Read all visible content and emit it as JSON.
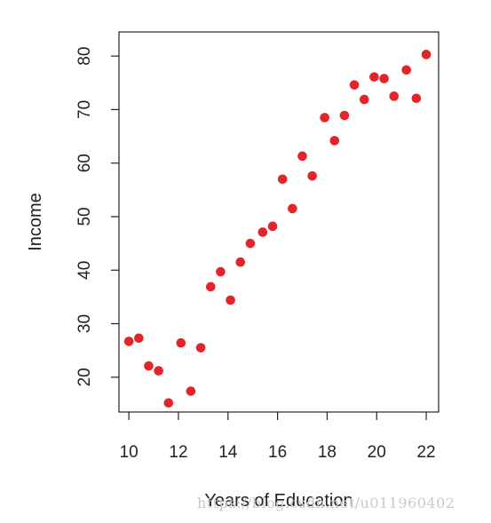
{
  "chart_data": {
    "type": "scatter",
    "xlabel": "Years of Education",
    "ylabel": "Income",
    "xlim": [
      9.6,
      22.5
    ],
    "ylim": [
      13.5,
      84.5
    ],
    "xticks": [
      10,
      12,
      14,
      16,
      18,
      20,
      22
    ],
    "yticks": [
      20,
      30,
      40,
      50,
      60,
      70,
      80
    ],
    "grid": false,
    "point_color": "#e3242b",
    "points": [
      {
        "x": 10.0,
        "y": 26.7
      },
      {
        "x": 10.4,
        "y": 27.3
      },
      {
        "x": 10.8,
        "y": 22.1
      },
      {
        "x": 11.2,
        "y": 21.2
      },
      {
        "x": 11.6,
        "y": 15.2
      },
      {
        "x": 12.1,
        "y": 26.4
      },
      {
        "x": 12.5,
        "y": 17.4
      },
      {
        "x": 12.9,
        "y": 25.5
      },
      {
        "x": 13.3,
        "y": 36.9
      },
      {
        "x": 13.7,
        "y": 39.7
      },
      {
        "x": 14.1,
        "y": 34.4
      },
      {
        "x": 14.5,
        "y": 41.5
      },
      {
        "x": 14.9,
        "y": 45.0
      },
      {
        "x": 15.4,
        "y": 47.1
      },
      {
        "x": 15.8,
        "y": 48.2
      },
      {
        "x": 16.2,
        "y": 57.0
      },
      {
        "x": 16.6,
        "y": 51.5
      },
      {
        "x": 17.0,
        "y": 61.3
      },
      {
        "x": 17.4,
        "y": 57.6
      },
      {
        "x": 17.9,
        "y": 68.5
      },
      {
        "x": 18.3,
        "y": 64.2
      },
      {
        "x": 18.7,
        "y": 68.9
      },
      {
        "x": 19.1,
        "y": 74.6
      },
      {
        "x": 19.5,
        "y": 71.9
      },
      {
        "x": 19.9,
        "y": 76.1
      },
      {
        "x": 20.3,
        "y": 75.8
      },
      {
        "x": 20.7,
        "y": 72.5
      },
      {
        "x": 21.2,
        "y": 77.4
      },
      {
        "x": 21.6,
        "y": 72.1
      },
      {
        "x": 22.0,
        "y": 80.3
      }
    ]
  },
  "watermark": "https://blog.csdn.net/u011960402"
}
